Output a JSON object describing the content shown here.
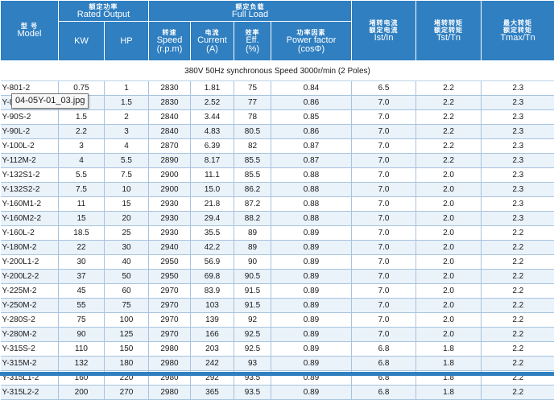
{
  "header": {
    "model": {
      "zh": "型 号",
      "en": "Model"
    },
    "rated_output": {
      "zh": "额定功率",
      "en": "Rated Output"
    },
    "full_load": {
      "zh": "额定负载",
      "en": "Full Load"
    },
    "ist": {
      "zh1": "堵转电流",
      "zh2": "额定电流",
      "en": "Ist/In"
    },
    "tst": {
      "zh1": "堵转转矩",
      "zh2": "额定转矩",
      "en": "Tst/Tn"
    },
    "tmax": {
      "zh1": "最大转矩",
      "zh2": "额定转矩",
      "en": "Tmax/Tn"
    },
    "kw": "KW",
    "hp": "HP",
    "speed": {
      "zh": "转速",
      "en1": "Speed",
      "en2": "(r.p.m)"
    },
    "current": {
      "zh": "电流",
      "en1": "Current",
      "en2": "(A)"
    },
    "eff": {
      "zh": "效率",
      "en1": "Eff.",
      "en2": "(%)"
    },
    "pf": {
      "zh": "功率因素",
      "en1": "Power factor",
      "en2": "(cosΦ)"
    }
  },
  "section_title": "380V 50Hz synchronous  Speed 3000r/min (2 Poles)",
  "tooltip": "04-05Y-01_03.jpg",
  "rows": [
    {
      "model": "Y-801-2",
      "kw": "0.75",
      "hp": "1",
      "speed": "2830",
      "current": "1.81",
      "eff": "75",
      "pf": "0.84",
      "ist": "6.5",
      "tst": "2.2",
      "tmax": "2.3"
    },
    {
      "model": "Y-802-2",
      "kw": "1.1",
      "hp": "1.5",
      "speed": "2830",
      "current": "2.52",
      "eff": "77",
      "pf": "0.86",
      "ist": "7.0",
      "tst": "2.2",
      "tmax": "2.3"
    },
    {
      "model": "Y-90S-2",
      "kw": "1.5",
      "hp": "2",
      "speed": "2840",
      "current": "3.44",
      "eff": "78",
      "pf": "0.85",
      "ist": "7.0",
      "tst": "2.2",
      "tmax": "2.3"
    },
    {
      "model": "Y-90L-2",
      "kw": "2.2",
      "hp": "3",
      "speed": "2840",
      "current": "4.83",
      "eff": "80.5",
      "pf": "0.86",
      "ist": "7.0",
      "tst": "2.2",
      "tmax": "2.3"
    },
    {
      "model": "Y-100L-2",
      "kw": "3",
      "hp": "4",
      "speed": "2870",
      "current": "6.39",
      "eff": "82",
      "pf": "0.87",
      "ist": "7.0",
      "tst": "2.2",
      "tmax": "2.3"
    },
    {
      "model": "Y-112M-2",
      "kw": "4",
      "hp": "5.5",
      "speed": "2890",
      "current": "8.17",
      "eff": "85.5",
      "pf": "0.87",
      "ist": "7.0",
      "tst": "2.2",
      "tmax": "2.3"
    },
    {
      "model": "Y-132S1-2",
      "kw": "5.5",
      "hp": "7.5",
      "speed": "2900",
      "current": "11.1",
      "eff": "85.5",
      "pf": "0.88",
      "ist": "7.0",
      "tst": "2.0",
      "tmax": "2.3"
    },
    {
      "model": "Y-132S2-2",
      "kw": "7.5",
      "hp": "10",
      "speed": "2900",
      "current": "15.0",
      "eff": "86.2",
      "pf": "0.88",
      "ist": "7.0",
      "tst": "2.0",
      "tmax": "2.3"
    },
    {
      "model": "Y-160M1-2",
      "kw": "11",
      "hp": "15",
      "speed": "2930",
      "current": "21.8",
      "eff": "87.2",
      "pf": "0.88",
      "ist": "7.0",
      "tst": "2.0",
      "tmax": "2.3"
    },
    {
      "model": "Y-160M2-2",
      "kw": "15",
      "hp": "20",
      "speed": "2930",
      "current": "29.4",
      "eff": "88.2",
      "pf": "0.88",
      "ist": "7.0",
      "tst": "2.0",
      "tmax": "2.3"
    },
    {
      "model": "Y-160L-2",
      "kw": "18.5",
      "hp": "25",
      "speed": "2930",
      "current": "35.5",
      "eff": "89",
      "pf": "0.89",
      "ist": "7.0",
      "tst": "2.0",
      "tmax": "2.2"
    },
    {
      "model": "Y-180M-2",
      "kw": "22",
      "hp": "30",
      "speed": "2940",
      "current": "42.2",
      "eff": "89",
      "pf": "0.89",
      "ist": "7.0",
      "tst": "2.0",
      "tmax": "2.2"
    },
    {
      "model": "Y-200L1-2",
      "kw": "30",
      "hp": "40",
      "speed": "2950",
      "current": "56.9",
      "eff": "90",
      "pf": "0.89",
      "ist": "7.0",
      "tst": "2.0",
      "tmax": "2.2"
    },
    {
      "model": "Y-200L2-2",
      "kw": "37",
      "hp": "50",
      "speed": "2950",
      "current": "69.8",
      "eff": "90.5",
      "pf": "0.89",
      "ist": "7.0",
      "tst": "2.0",
      "tmax": "2.2"
    },
    {
      "model": "Y-225M-2",
      "kw": "45",
      "hp": "60",
      "speed": "2970",
      "current": "83.9",
      "eff": "91.5",
      "pf": "0.89",
      "ist": "7.0",
      "tst": "2.0",
      "tmax": "2.2"
    },
    {
      "model": "Y-250M-2",
      "kw": "55",
      "hp": "75",
      "speed": "2970",
      "current": "103",
      "eff": "91.5",
      "pf": "0.89",
      "ist": "7.0",
      "tst": "2.0",
      "tmax": "2.2"
    },
    {
      "model": "Y-280S-2",
      "kw": "75",
      "hp": "100",
      "speed": "2970",
      "current": "139",
      "eff": "92",
      "pf": "0.89",
      "ist": "7.0",
      "tst": "2.0",
      "tmax": "2.2"
    },
    {
      "model": "Y-280M-2",
      "kw": "90",
      "hp": "125",
      "speed": "2970",
      "current": "166",
      "eff": "92.5",
      "pf": "0.89",
      "ist": "7.0",
      "tst": "2.0",
      "tmax": "2.2"
    },
    {
      "model": "Y-315S-2",
      "kw": "110",
      "hp": "150",
      "speed": "2980",
      "current": "203",
      "eff": "92.5",
      "pf": "0.89",
      "ist": "6.8",
      "tst": "1.8",
      "tmax": "2.2"
    },
    {
      "model": "Y-315M-2",
      "kw": "132",
      "hp": "180",
      "speed": "2980",
      "current": "242",
      "eff": "93",
      "pf": "0.89",
      "ist": "6.8",
      "tst": "1.8",
      "tmax": "2.2"
    },
    {
      "model": "Y-315L1-2",
      "kw": "160",
      "hp": "220",
      "speed": "2980",
      "current": "292",
      "eff": "93.5",
      "pf": "0.89",
      "ist": "6.8",
      "tst": "1.8",
      "tmax": "2.2"
    },
    {
      "model": "Y-315L2-2",
      "kw": "200",
      "hp": "270",
      "speed": "2980",
      "current": "365",
      "eff": "93.5",
      "pf": "0.89",
      "ist": "6.8",
      "tst": "1.8",
      "tmax": "2.2"
    }
  ]
}
